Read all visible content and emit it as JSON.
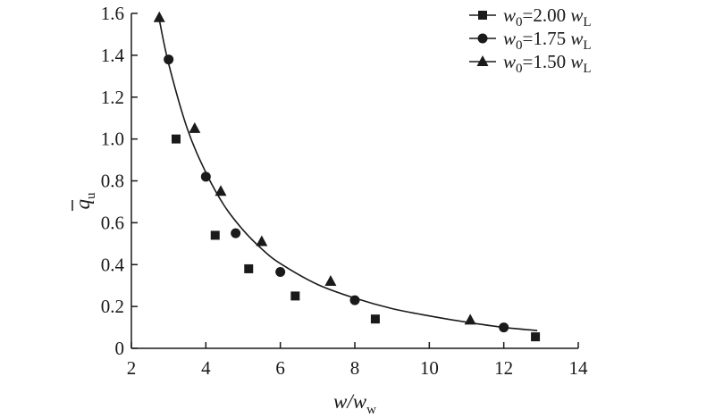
{
  "chart_data": {
    "type": "scatter",
    "xlabel": {
      "main": "w/w",
      "sub": "w"
    },
    "ylabel": {
      "main": "q",
      "sub": "u"
    },
    "xlim": [
      2,
      14
    ],
    "ylim": [
      0,
      1.6
    ],
    "x_ticks": [
      "2",
      "4",
      "6",
      "8",
      "10",
      "12",
      "14"
    ],
    "y_ticks": [
      "0",
      "0.2",
      "0.4",
      "0.6",
      "0.8",
      "1.0",
      "1.2",
      "1.4",
      "1.6"
    ],
    "x_tick_values": [
      2,
      4,
      6,
      8,
      10,
      12,
      14
    ],
    "y_tick_values": [
      0,
      0.2,
      0.4,
      0.6,
      0.8,
      1.0,
      1.2,
      1.4,
      1.6
    ],
    "legend_position": "top-right",
    "series": [
      {
        "marker": "square",
        "legend": {
          "var": "w",
          "var_sub": "0",
          "eq": "=2.00 ",
          "unit": "w",
          "unit_sub": "L"
        },
        "x": [
          3.2,
          4.25,
          5.15,
          6.4,
          8.55,
          12.85
        ],
        "y": [
          1.0,
          0.54,
          0.38,
          0.25,
          0.14,
          0.055
        ]
      },
      {
        "marker": "circle",
        "legend": {
          "var": "w",
          "var_sub": "0",
          "eq": "=1.75 ",
          "unit": "w",
          "unit_sub": "L"
        },
        "x": [
          3.0,
          4.0,
          4.8,
          6.0,
          8.0,
          12.0
        ],
        "y": [
          1.38,
          0.82,
          0.55,
          0.365,
          0.23,
          0.1
        ]
      },
      {
        "marker": "triangle",
        "legend": {
          "var": "w",
          "var_sub": "0",
          "eq": "=1.50 ",
          "unit": "w",
          "unit_sub": "L"
        },
        "x": [
          2.75,
          3.7,
          4.4,
          5.5,
          7.35,
          11.1
        ],
        "y": [
          1.58,
          1.05,
          0.75,
          0.51,
          0.32,
          0.135
        ]
      }
    ],
    "fit_curve": {
      "x": [
        2.75,
        3.0,
        3.5,
        4.0,
        4.5,
        5.0,
        5.5,
        6.0,
        7.0,
        8.0,
        9.0,
        10.0,
        11.0,
        12.0,
        12.9
      ],
      "y": [
        1.57,
        1.36,
        1.05,
        0.84,
        0.68,
        0.565,
        0.475,
        0.405,
        0.305,
        0.24,
        0.19,
        0.155,
        0.125,
        0.1,
        0.085
      ]
    }
  }
}
